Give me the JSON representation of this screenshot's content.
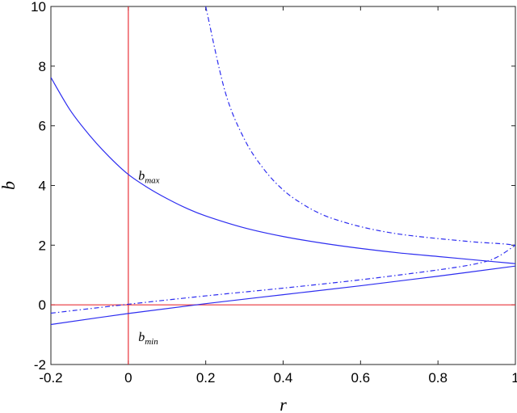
{
  "chart_data": {
    "type": "line",
    "title": "",
    "xlabel": "r",
    "ylabel": "b",
    "xlim": [
      -0.2,
      1.0
    ],
    "ylim": [
      -2,
      10
    ],
    "xticks": [
      -0.2,
      0,
      0.2,
      0.4,
      0.6,
      0.8,
      1.0
    ],
    "xtick_labels": [
      "-0.2",
      "0",
      "0.2",
      "0.4",
      "0.6",
      "0.8",
      "1"
    ],
    "yticks": [
      -2,
      0,
      2,
      4,
      6,
      8,
      10
    ],
    "ytick_labels": [
      "-2",
      "0",
      "2",
      "4",
      "6",
      "8",
      "10"
    ],
    "grid": false,
    "legend": "none",
    "series": [
      {
        "style": "solid",
        "color": "#2d2df0",
        "x": [
          -0.2,
          -0.15,
          -0.1,
          -0.05,
          0.0,
          0.05,
          0.1,
          0.15,
          0.2,
          0.3,
          0.4,
          0.5,
          0.6,
          0.7,
          0.8,
          0.9,
          1.0
        ],
        "y": [
          7.62,
          6.52,
          5.68,
          4.97,
          4.37,
          3.93,
          3.56,
          3.24,
          2.98,
          2.58,
          2.29,
          2.07,
          1.89,
          1.74,
          1.62,
          1.5,
          1.38
        ]
      },
      {
        "style": "solid",
        "color": "#2d2df0",
        "x": [
          -0.2,
          0.0,
          0.2,
          0.4,
          0.6,
          0.8,
          1.0
        ],
        "y": [
          -0.66,
          -0.29,
          0.04,
          0.34,
          0.64,
          0.96,
          1.3
        ]
      },
      {
        "style": "dashdot",
        "color": "#2d2df0",
        "x": [
          0.2,
          0.25,
          0.3,
          0.35,
          0.4,
          0.45,
          0.5,
          0.55,
          0.6,
          0.65,
          0.7,
          0.75,
          0.8,
          0.85,
          0.9,
          0.95,
          0.98,
          1.0
        ],
        "y": [
          10.0,
          7.15,
          5.55,
          4.55,
          3.85,
          3.38,
          3.03,
          2.8,
          2.62,
          2.48,
          2.37,
          2.29,
          2.22,
          2.16,
          2.1,
          2.06,
          2.03,
          2.0
        ]
      },
      {
        "style": "dashdot",
        "color": "#2d2df0",
        "x": [
          -0.2,
          0.0,
          0.2,
          0.4,
          0.6,
          0.8,
          0.9,
          0.95,
          1.0
        ],
        "y": [
          -0.28,
          0.02,
          0.3,
          0.56,
          0.84,
          1.17,
          1.38,
          1.58,
          2.0
        ]
      }
    ],
    "reference_lines": [
      {
        "orientation": "vertical",
        "value": 0,
        "color": "#e8333a"
      },
      {
        "orientation": "horizontal",
        "value": 0,
        "color": "#e8333a"
      }
    ],
    "annotations": [
      {
        "main": "b",
        "sub": "max",
        "x": 0.005,
        "y": 4.35
      },
      {
        "main": "b",
        "sub": "min",
        "x": 0.005,
        "y": -1.05
      }
    ]
  }
}
